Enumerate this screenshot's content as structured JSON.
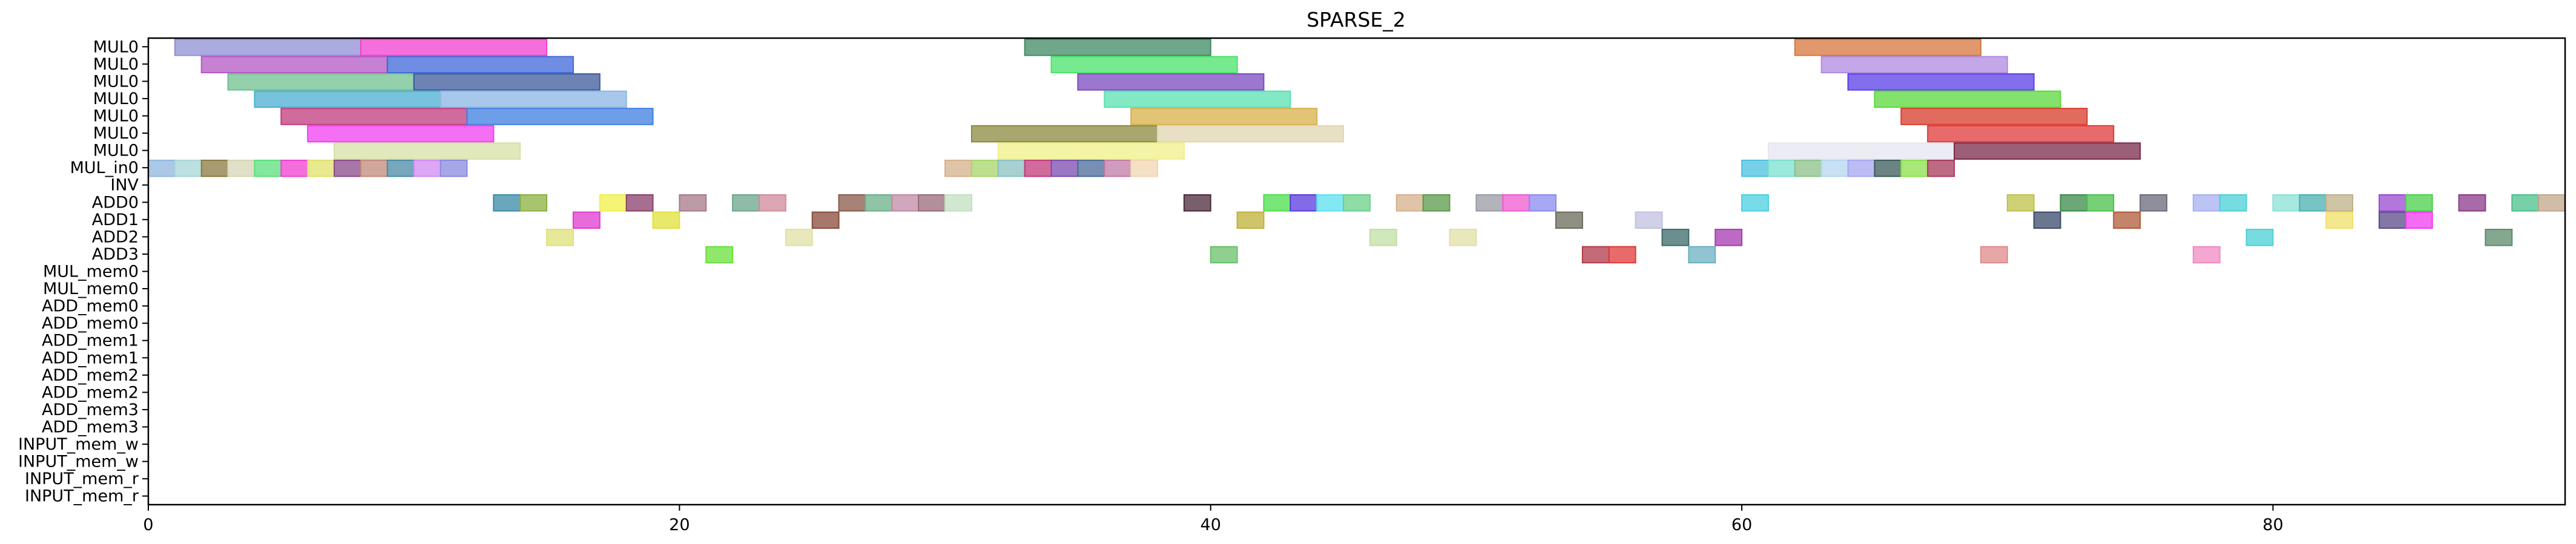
{
  "chart_data": {
    "type": "gantt",
    "title": "SPARSE_2",
    "xlabel": "",
    "ylabel": "",
    "xlim": [
      0,
      90
    ],
    "xticks": [
      0,
      20,
      40,
      60,
      80
    ],
    "rows": [
      "MUL0",
      "MUL0",
      "MUL0",
      "MUL0",
      "MUL0",
      "MUL0",
      "MUL0",
      "MUL_in0",
      "INV",
      "ADD0",
      "ADD1",
      "ADD2",
      "ADD3",
      "MUL_mem0",
      "MUL_mem0",
      "ADD_mem0",
      "ADD_mem0",
      "ADD_mem1",
      "ADD_mem1",
      "ADD_mem2",
      "ADD_mem2",
      "ADD_mem3",
      "ADD_mem3",
      "INPUT_mem_w",
      "INPUT_mem_w",
      "INPUT_mem_r",
      "INPUT_mem_r"
    ],
    "grid": false,
    "note_colors": "each task bar drawn with a distinct translucent color",
    "tasks": [
      {
        "row": 0,
        "start": 1.0,
        "end": 8.0,
        "color": "#8f8fd6"
      },
      {
        "row": 0,
        "start": 8.0,
        "end": 15.0,
        "color": "#f23fd0"
      },
      {
        "row": 0,
        "start": 33.0,
        "end": 40.0,
        "color": "#3f8a63"
      },
      {
        "row": 0,
        "start": 62.0,
        "end": 69.0,
        "color": "#d8763c"
      },
      {
        "row": 1,
        "start": 2.0,
        "end": 9.0,
        "color": "#b457c4"
      },
      {
        "row": 1,
        "start": 9.0,
        "end": 16.0,
        "color": "#3f67d8"
      },
      {
        "row": 1,
        "start": 34.0,
        "end": 41.0,
        "color": "#49e36a"
      },
      {
        "row": 1,
        "start": 63.0,
        "end": 70.0,
        "color": "#b08ae0"
      },
      {
        "row": 2,
        "start": 3.0,
        "end": 10.0,
        "color": "#6fc08f"
      },
      {
        "row": 2,
        "start": 10.0,
        "end": 17.0,
        "color": "#3b5a9a"
      },
      {
        "row": 2,
        "start": 35.0,
        "end": 42.0,
        "color": "#7a4ac0"
      },
      {
        "row": 2,
        "start": 64.0,
        "end": 71.0,
        "color": "#5a3ee8"
      },
      {
        "row": 3,
        "start": 4.0,
        "end": 11.0,
        "color": "#4aaed0"
      },
      {
        "row": 3,
        "start": 11.0,
        "end": 18.0,
        "color": "#8ab6e3"
      },
      {
        "row": 3,
        "start": 36.0,
        "end": 43.0,
        "color": "#5ae0b0"
      },
      {
        "row": 3,
        "start": 65.0,
        "end": 72.0,
        "color": "#5ad83a"
      },
      {
        "row": 4,
        "start": 5.0,
        "end": 12.0,
        "color": "#c0397c"
      },
      {
        "row": 4,
        "start": 12.0,
        "end": 19.0,
        "color": "#3f7ee0"
      },
      {
        "row": 4,
        "start": 37.0,
        "end": 44.0,
        "color": "#d8b04a"
      },
      {
        "row": 4,
        "start": 66.0,
        "end": 73.0,
        "color": "#d83a2a"
      },
      {
        "row": 5,
        "start": 6.0,
        "end": 13.0,
        "color": "#f23ff0"
      },
      {
        "row": 5,
        "start": 31.0,
        "end": 38.0,
        "color": "#8a8a3f"
      },
      {
        "row": 5,
        "start": 38.0,
        "end": 45.0,
        "color": "#e0d6b0"
      },
      {
        "row": 5,
        "start": 67.0,
        "end": 74.0,
        "color": "#e03a3a"
      },
      {
        "row": 6,
        "start": 7.0,
        "end": 14.0,
        "color": "#d6e0a6"
      },
      {
        "row": 6,
        "start": 32.0,
        "end": 39.0,
        "color": "#f0f08a"
      },
      {
        "row": 6,
        "start": 61.0,
        "end": 68.0,
        "color": "#e6e6f0"
      },
      {
        "row": 6,
        "start": 68.0,
        "end": 75.0,
        "color": "#7a2a4a"
      },
      {
        "row": 7,
        "start": 0,
        "end": 1,
        "color": "#8fb6e0"
      },
      {
        "row": 7,
        "start": 1,
        "end": 2,
        "color": "#a6d6d6"
      },
      {
        "row": 7,
        "start": 2,
        "end": 3,
        "color": "#8a7a3f"
      },
      {
        "row": 7,
        "start": 3,
        "end": 4,
        "color": "#d6d6b6"
      },
      {
        "row": 7,
        "start": 4,
        "end": 5,
        "color": "#5ae07a"
      },
      {
        "row": 7,
        "start": 5,
        "end": 6,
        "color": "#f03fd0"
      },
      {
        "row": 7,
        "start": 6,
        "end": 7,
        "color": "#e0e06a"
      },
      {
        "row": 7,
        "start": 7,
        "end": 8,
        "color": "#8a4a8a"
      },
      {
        "row": 7,
        "start": 8,
        "end": 9,
        "color": "#c08a7a"
      },
      {
        "row": 7,
        "start": 9,
        "end": 10,
        "color": "#4a8aa6"
      },
      {
        "row": 7,
        "start": 10,
        "end": 11,
        "color": "#d08af0"
      },
      {
        "row": 7,
        "start": 11,
        "end": 12,
        "color": "#8a8ae0"
      },
      {
        "row": 7,
        "start": 30,
        "end": 31,
        "color": "#d6b08a"
      },
      {
        "row": 7,
        "start": 31,
        "end": 32,
        "color": "#a6d66a"
      },
      {
        "row": 7,
        "start": 32,
        "end": 33,
        "color": "#8ac0c0"
      },
      {
        "row": 7,
        "start": 33,
        "end": 34,
        "color": "#c03a7a"
      },
      {
        "row": 7,
        "start": 34,
        "end": 35,
        "color": "#7a4ab0"
      },
      {
        "row": 7,
        "start": 35,
        "end": 36,
        "color": "#4a6a9a"
      },
      {
        "row": 7,
        "start": 36,
        "end": 37,
        "color": "#c07aa6"
      },
      {
        "row": 7,
        "start": 37,
        "end": 38,
        "color": "#f0d6b0"
      },
      {
        "row": 7,
        "start": 60,
        "end": 61,
        "color": "#4ac0e0"
      },
      {
        "row": 7,
        "start": 61,
        "end": 62,
        "color": "#7ae0d0"
      },
      {
        "row": 7,
        "start": 62,
        "end": 63,
        "color": "#8ac08a"
      },
      {
        "row": 7,
        "start": 63,
        "end": 64,
        "color": "#b6d6f0"
      },
      {
        "row": 7,
        "start": 64,
        "end": 65,
        "color": "#a6a6f0"
      },
      {
        "row": 7,
        "start": 65,
        "end": 66,
        "color": "#3a5a5a"
      },
      {
        "row": 7,
        "start": 66,
        "end": 67,
        "color": "#8ae04a"
      },
      {
        "row": 7,
        "start": 67,
        "end": 68,
        "color": "#a63a5a"
      },
      {
        "row": 9,
        "start": 13,
        "end": 14,
        "color": "#3a8aa6"
      },
      {
        "row": 9,
        "start": 14,
        "end": 15,
        "color": "#8ab03f"
      },
      {
        "row": 9,
        "start": 17,
        "end": 18,
        "color": "#f0f04a"
      },
      {
        "row": 9,
        "start": 18,
        "end": 19,
        "color": "#8a3f6a"
      },
      {
        "row": 9,
        "start": 20,
        "end": 21,
        "color": "#a67a8a"
      },
      {
        "row": 9,
        "start": 22,
        "end": 23,
        "color": "#6aa68a"
      },
      {
        "row": 9,
        "start": 23,
        "end": 24,
        "color": "#d08a9a"
      },
      {
        "row": 9,
        "start": 26,
        "end": 27,
        "color": "#8a5a4a"
      },
      {
        "row": 9,
        "start": 27,
        "end": 28,
        "color": "#6ab08a"
      },
      {
        "row": 9,
        "start": 28,
        "end": 29,
        "color": "#c08aa6"
      },
      {
        "row": 9,
        "start": 29,
        "end": 30,
        "color": "#9a6a7a"
      },
      {
        "row": 9,
        "start": 30,
        "end": 31,
        "color": "#c0e0c0"
      },
      {
        "row": 9,
        "start": 39,
        "end": 40,
        "color": "#4a2a3a"
      },
      {
        "row": 9,
        "start": 42,
        "end": 43,
        "color": "#4ae04a"
      },
      {
        "row": 9,
        "start": 43,
        "end": 44,
        "color": "#5a3ae0"
      },
      {
        "row": 9,
        "start": 44,
        "end": 45,
        "color": "#5ae0f0"
      },
      {
        "row": 9,
        "start": 45,
        "end": 46,
        "color": "#6ad08a"
      },
      {
        "row": 9,
        "start": 47,
        "end": 48,
        "color": "#d6b08a"
      },
      {
        "row": 9,
        "start": 48,
        "end": 49,
        "color": "#5a9a4a"
      },
      {
        "row": 9,
        "start": 50,
        "end": 51,
        "color": "#9a9aa6"
      },
      {
        "row": 9,
        "start": 51,
        "end": 52,
        "color": "#f05ad0"
      },
      {
        "row": 9,
        "start": 52,
        "end": 53,
        "color": "#8a8af0"
      },
      {
        "row": 9,
        "start": 60,
        "end": 61,
        "color": "#4ad0e0"
      },
      {
        "row": 9,
        "start": 70,
        "end": 71,
        "color": "#c0c04a"
      },
      {
        "row": 9,
        "start": 72,
        "end": 73,
        "color": "#3a8a4a"
      },
      {
        "row": 9,
        "start": 73,
        "end": 74,
        "color": "#4ac04a"
      },
      {
        "row": 9,
        "start": 75,
        "end": 76,
        "color": "#6a6a7a"
      },
      {
        "row": 9,
        "start": 77,
        "end": 78,
        "color": "#a6b0f0"
      },
      {
        "row": 9,
        "start": 78,
        "end": 79,
        "color": "#4ad0d6"
      },
      {
        "row": 9,
        "start": 80,
        "end": 81,
        "color": "#8ae0d6"
      },
      {
        "row": 9,
        "start": 81,
        "end": 82,
        "color": "#4ab0b0"
      },
      {
        "row": 9,
        "start": 82,
        "end": 83,
        "color": "#c0b08a"
      },
      {
        "row": 9,
        "start": 84,
        "end": 85,
        "color": "#9a4ad0"
      },
      {
        "row": 9,
        "start": 85,
        "end": 86,
        "color": "#4ad04a"
      },
      {
        "row": 9,
        "start": 87,
        "end": 88,
        "color": "#8a3a8a"
      },
      {
        "row": 9,
        "start": 89,
        "end": 90,
        "color": "#4ac08a"
      },
      {
        "row": 9,
        "start": 90,
        "end": 91,
        "color": "#c0a68a"
      },
      {
        "row": 10,
        "start": 16,
        "end": 17,
        "color": "#e03ad0"
      },
      {
        "row": 10,
        "start": 19,
        "end": 20,
        "color": "#e0e03a"
      },
      {
        "row": 10,
        "start": 25,
        "end": 26,
        "color": "#8a4a3a"
      },
      {
        "row": 10,
        "start": 41,
        "end": 42,
        "color": "#c0b03a"
      },
      {
        "row": 10,
        "start": 53,
        "end": 54,
        "color": "#6a6a5a"
      },
      {
        "row": 10,
        "start": 56,
        "end": 57,
        "color": "#c0c0e0"
      },
      {
        "row": 10,
        "start": 71,
        "end": 72,
        "color": "#3a4a6a"
      },
      {
        "row": 10,
        "start": 74,
        "end": 75,
        "color": "#b05a3a"
      },
      {
        "row": 10,
        "start": 82,
        "end": 83,
        "color": "#f0e06a"
      },
      {
        "row": 10,
        "start": 84,
        "end": 85,
        "color": "#5a4a8a"
      },
      {
        "row": 10,
        "start": 85,
        "end": 86,
        "color": "#f03af0"
      },
      {
        "row": 11,
        "start": 15,
        "end": 16,
        "color": "#e0e07a"
      },
      {
        "row": 11,
        "start": 24,
        "end": 25,
        "color": "#e0e0a6"
      },
      {
        "row": 11,
        "start": 46,
        "end": 47,
        "color": "#c0e0a6"
      },
      {
        "row": 11,
        "start": 49,
        "end": 50,
        "color": "#e0e0a6"
      },
      {
        "row": 11,
        "start": 57,
        "end": 58,
        "color": "#3a6a6a"
      },
      {
        "row": 11,
        "start": 59,
        "end": 60,
        "color": "#a63ab0"
      },
      {
        "row": 11,
        "start": 79,
        "end": 80,
        "color": "#4ad0d6"
      },
      {
        "row": 11,
        "start": 88,
        "end": 89,
        "color": "#5a8a6a"
      },
      {
        "row": 12,
        "start": 21,
        "end": 22,
        "color": "#6ae03a"
      },
      {
        "row": 12,
        "start": 40,
        "end": 41,
        "color": "#6ac06a"
      },
      {
        "row": 12,
        "start": 54,
        "end": 55,
        "color": "#b03a4a"
      },
      {
        "row": 12,
        "start": 55,
        "end": 56,
        "color": "#e03a3a"
      },
      {
        "row": 12,
        "start": 58,
        "end": 59,
        "color": "#6ab0c0"
      },
      {
        "row": 12,
        "start": 69,
        "end": 70,
        "color": "#e08a8a"
      },
      {
        "row": 12,
        "start": 77,
        "end": 78,
        "color": "#f08ac0"
      }
    ]
  }
}
